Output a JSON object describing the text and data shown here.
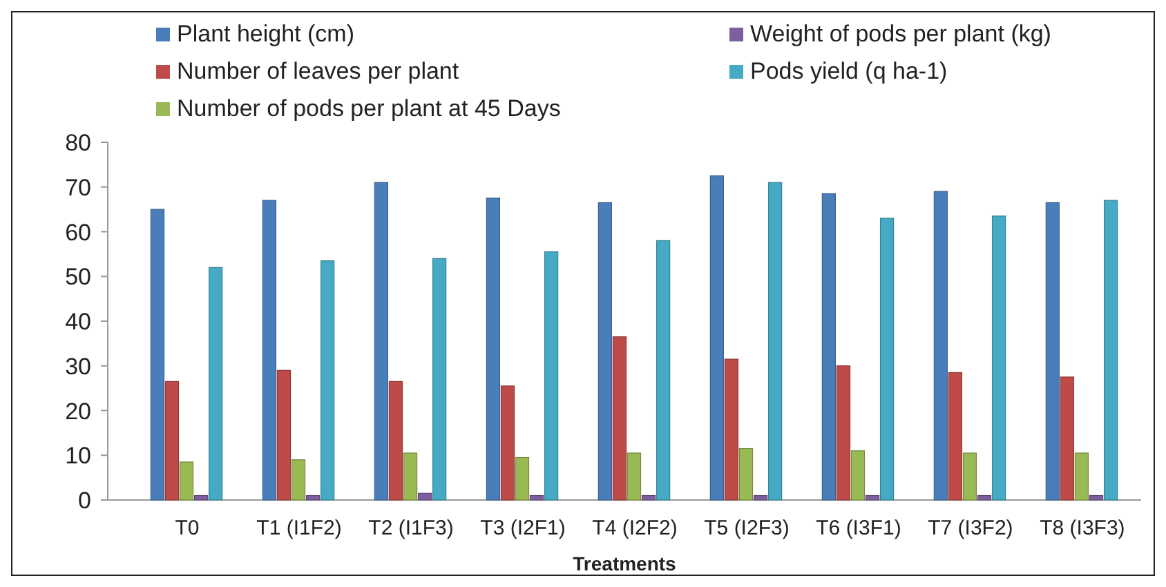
{
  "chart_data": {
    "type": "bar",
    "xlabel": "Treatments",
    "categories": [
      "T0",
      "T1 (I1F2)",
      "T2 (I1F3)",
      "T3 (I2F1)",
      "T4 (I2F2)",
      "T5 (I2F3)",
      "T6 (I3F1)",
      "T7 (I3F2)",
      "T8 (I3F3)"
    ],
    "series": [
      {
        "name": "Plant height (cm)",
        "color": "#4a7ebb",
        "values": [
          65,
          67,
          71,
          67.5,
          66.5,
          72.5,
          68.5,
          69,
          66.5
        ]
      },
      {
        "name": "Number of leaves per plant",
        "color": "#be4b48",
        "values": [
          26.5,
          29,
          26.5,
          25.5,
          36.5,
          31.5,
          30,
          28.5,
          27.5
        ]
      },
      {
        "name": "Number of pods per plant at 45 Days",
        "color": "#98b954",
        "values": [
          8.5,
          9,
          10.5,
          9.5,
          10.5,
          11.5,
          11,
          10.5,
          10.5
        ]
      },
      {
        "name": "Weight of pods per plant (kg)",
        "color": "#7d5fa0",
        "values": [
          1,
          1,
          1.5,
          1,
          1,
          1,
          1,
          1,
          1
        ]
      },
      {
        "name": "Pods yield (q ha-1)",
        "color": "#46aac5",
        "values": [
          52,
          53.5,
          54,
          55.5,
          58,
          71,
          63,
          63.5,
          67
        ]
      }
    ],
    "ylim": [
      0,
      80
    ],
    "yticks": [
      0,
      10,
      20,
      30,
      40,
      50,
      60,
      70,
      80
    ],
    "grid": false,
    "legend": "top"
  }
}
